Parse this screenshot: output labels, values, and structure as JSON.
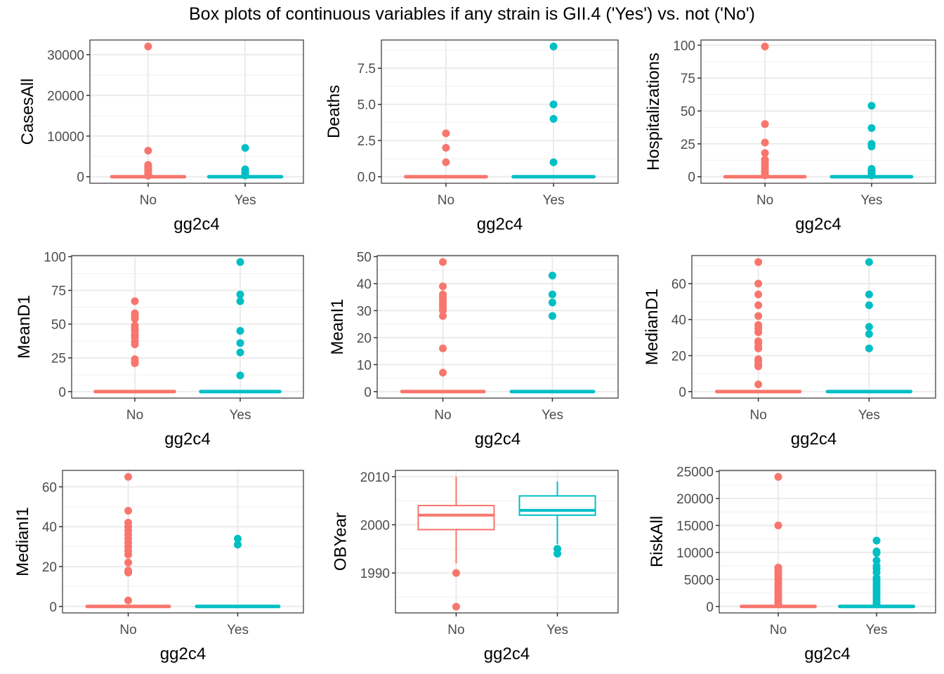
{
  "title": "Box plots of continuous variables if any strain is GII.4 ('Yes') vs. not ('No')",
  "colors": {
    "No": "#F8766D",
    "Yes": "#00BFC4",
    "grid_major": "#EBEBEB",
    "grid_minor": "#F2F2F2",
    "panel_border": "#333333",
    "tick_text": "#4D4D4D"
  },
  "chart_data": [
    {
      "type": "box",
      "title": "",
      "xlabel": "gg2c4",
      "ylabel": "CasesAll",
      "categories": [
        "No",
        "Yes"
      ],
      "ylim": [
        -1600,
        33600
      ],
      "yticks": [
        0,
        10000,
        20000,
        30000
      ],
      "ytick_labels": [
        "0",
        "10000",
        "20000",
        "30000"
      ],
      "grid": true,
      "series": [
        {
          "name": "No",
          "q1": 0,
          "median": 0,
          "q3": 0,
          "whisker_low": 0,
          "whisker_high": 0,
          "outliers": [
            32000,
            6400,
            2900,
            2600,
            2300,
            2000,
            1700,
            1400,
            1100,
            800,
            500,
            250
          ]
        },
        {
          "name": "Yes",
          "q1": 0,
          "median": 0,
          "q3": 0,
          "whisker_low": 0,
          "whisker_high": 0,
          "outliers": [
            7100,
            1800,
            1500,
            1200,
            900,
            600,
            300
          ]
        }
      ]
    },
    {
      "type": "box",
      "xlabel": "gg2c4",
      "ylabel": "Deaths",
      "categories": [
        "No",
        "Yes"
      ],
      "ylim": [
        -0.45,
        9.45
      ],
      "yticks": [
        0,
        2.5,
        5,
        7.5
      ],
      "ytick_labels": [
        "0.0",
        "2.5",
        "5.0",
        "7.5"
      ],
      "grid": true,
      "series": [
        {
          "name": "No",
          "q1": 0,
          "median": 0,
          "q3": 0,
          "whisker_low": 0,
          "whisker_high": 0,
          "outliers": [
            3,
            2,
            1
          ]
        },
        {
          "name": "Yes",
          "q1": 0,
          "median": 0,
          "q3": 0,
          "whisker_low": 0,
          "whisker_high": 0,
          "outliers": [
            9,
            5,
            4,
            1
          ]
        }
      ]
    },
    {
      "type": "box",
      "xlabel": "gg2c4",
      "ylabel": "Hospitalizations",
      "categories": [
        "No",
        "Yes"
      ],
      "ylim": [
        -4.95,
        103.95
      ],
      "yticks": [
        0,
        25,
        50,
        75,
        100
      ],
      "ytick_labels": [
        "0",
        "25",
        "50",
        "75",
        "100"
      ],
      "grid": true,
      "series": [
        {
          "name": "No",
          "q1": 0,
          "median": 0,
          "q3": 0,
          "whisker_low": 0,
          "whisker_high": 0,
          "outliers": [
            99,
            40,
            26,
            18,
            13,
            11,
            9,
            7,
            5,
            4,
            3,
            2,
            1
          ]
        },
        {
          "name": "Yes",
          "q1": 0,
          "median": 0,
          "q3": 0,
          "whisker_low": 0,
          "whisker_high": 0,
          "outliers": [
            54,
            37,
            25,
            23,
            6,
            5,
            4,
            3,
            2,
            1
          ]
        }
      ]
    },
    {
      "type": "box",
      "xlabel": "gg2c4",
      "ylabel": "MeanD1",
      "categories": [
        "No",
        "Yes"
      ],
      "ylim": [
        -4.8,
        100.8
      ],
      "yticks": [
        0,
        25,
        50,
        75,
        100
      ],
      "ytick_labels": [
        "0",
        "25",
        "50",
        "75",
        "100"
      ],
      "grid": true,
      "series": [
        {
          "name": "No",
          "q1": 0,
          "median": 0,
          "q3": 0,
          "whisker_low": 0,
          "whisker_high": 0,
          "outliers": [
            67,
            58,
            56,
            54,
            49,
            47,
            45,
            42,
            40,
            37,
            35,
            24,
            22,
            21
          ]
        },
        {
          "name": "Yes",
          "q1": 0,
          "median": 0,
          "q3": 0,
          "whisker_low": 0,
          "whisker_high": 0,
          "outliers": [
            96,
            72,
            67,
            45,
            36,
            29,
            12
          ]
        }
      ]
    },
    {
      "type": "box",
      "xlabel": "gg2c4",
      "ylabel": "MeanI1",
      "categories": [
        "No",
        "Yes"
      ],
      "ylim": [
        -2.4,
        50.4
      ],
      "yticks": [
        0,
        10,
        20,
        30,
        40,
        50
      ],
      "ytick_labels": [
        "0",
        "10",
        "20",
        "30",
        "40",
        "50"
      ],
      "grid": true,
      "series": [
        {
          "name": "No",
          "q1": 0,
          "median": 0,
          "q3": 0,
          "whisker_low": 0,
          "whisker_high": 0,
          "outliers": [
            48,
            39,
            36,
            35,
            34,
            33,
            32,
            31,
            30,
            28,
            16,
            7
          ]
        },
        {
          "name": "Yes",
          "q1": 0,
          "median": 0,
          "q3": 0,
          "whisker_low": 0,
          "whisker_high": 0,
          "outliers": [
            43,
            36,
            33,
            28
          ]
        }
      ]
    },
    {
      "type": "box",
      "xlabel": "gg2c4",
      "ylabel": "MedianD1",
      "categories": [
        "No",
        "Yes"
      ],
      "ylim": [
        -3.6,
        75.6
      ],
      "yticks": [
        0,
        20,
        40,
        60
      ],
      "ytick_labels": [
        "0",
        "20",
        "40",
        "60"
      ],
      "grid": true,
      "series": [
        {
          "name": "No",
          "q1": 0,
          "median": 0,
          "q3": 0,
          "whisker_low": 0,
          "whisker_high": 0,
          "outliers": [
            72,
            60,
            54,
            48,
            42,
            37,
            35,
            33,
            28,
            27,
            25,
            24,
            18,
            17,
            15,
            14,
            4
          ]
        },
        {
          "name": "Yes",
          "q1": 0,
          "median": 0,
          "q3": 0,
          "whisker_low": 0,
          "whisker_high": 0,
          "outliers": [
            72,
            54,
            48,
            36,
            32,
            24
          ]
        }
      ]
    },
    {
      "type": "box",
      "xlabel": "gg2c4",
      "ylabel": "MedianI1",
      "categories": [
        "No",
        "Yes"
      ],
      "ylim": [
        -3.25,
        68.25
      ],
      "yticks": [
        0,
        20,
        40,
        60
      ],
      "ytick_labels": [
        "0",
        "20",
        "40",
        "60"
      ],
      "grid": true,
      "series": [
        {
          "name": "No",
          "q1": 0,
          "median": 0,
          "q3": 0,
          "whisker_low": 0,
          "whisker_high": 0,
          "outliers": [
            65,
            48,
            42,
            40,
            38,
            36,
            34,
            32,
            30,
            28,
            26,
            22,
            18,
            17,
            3
          ]
        },
        {
          "name": "Yes",
          "q1": 0,
          "median": 0,
          "q3": 0,
          "whisker_low": 0,
          "whisker_high": 0,
          "outliers": [
            34,
            31
          ]
        }
      ]
    },
    {
      "type": "box",
      "xlabel": "gg2c4",
      "ylabel": "OBYear",
      "categories": [
        "No",
        "Yes"
      ],
      "ylim": [
        1981.7,
        2011.3
      ],
      "yticks": [
        1990,
        2000,
        2010
      ],
      "ytick_labels": [
        "1990",
        "2000",
        "2010"
      ],
      "grid": true,
      "series": [
        {
          "name": "No",
          "q1": 1999,
          "median": 2002,
          "q3": 2004,
          "whisker_low": 1992,
          "whisker_high": 2010,
          "outliers": [
            1990,
            1983
          ]
        },
        {
          "name": "Yes",
          "q1": 2002,
          "median": 2003,
          "q3": 2006,
          "whisker_low": 1996,
          "whisker_high": 2009,
          "outliers": [
            1995,
            1994
          ]
        }
      ]
    },
    {
      "type": "box",
      "xlabel": "gg2c4",
      "ylabel": "RiskAll",
      "categories": [
        "No",
        "Yes"
      ],
      "ylim": [
        -1200,
        25200
      ],
      "yticks": [
        0,
        5000,
        10000,
        15000,
        20000,
        25000
      ],
      "ytick_labels": [
        "0",
        "5000",
        "10000",
        "15000",
        "20000",
        "25000"
      ],
      "grid": true,
      "series": [
        {
          "name": "No",
          "q1": 0,
          "median": 0,
          "q3": 0,
          "whisker_low": 0,
          "whisker_high": 0,
          "outliers": [
            24000,
            15000,
            7200,
            6800,
            6300,
            5800,
            5300,
            4800,
            4300,
            3800,
            3300,
            2800,
            2300,
            1800,
            1300,
            800,
            400
          ]
        },
        {
          "name": "Yes",
          "q1": 0,
          "median": 0,
          "q3": 0,
          "whisker_low": 0,
          "whisker_high": 0,
          "outliers": [
            12200,
            10200,
            9900,
            8500,
            7500,
            7000,
            6300,
            5300,
            4800,
            4300,
            3800,
            3300,
            2800,
            2300,
            1800,
            1300,
            800,
            400
          ]
        }
      ]
    }
  ]
}
